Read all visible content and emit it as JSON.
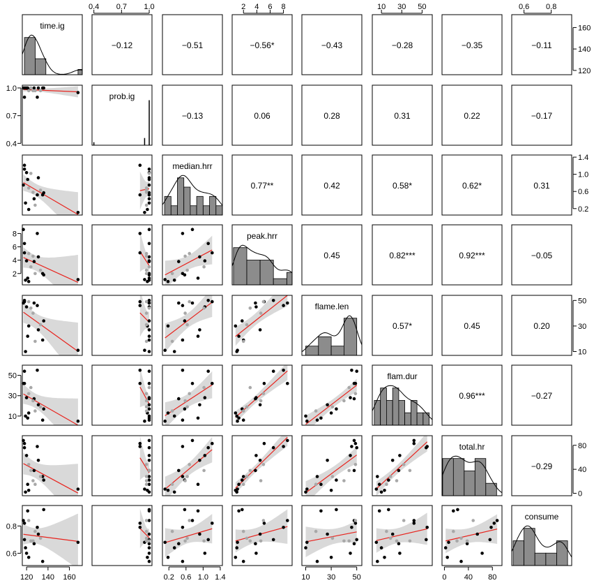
{
  "chart_data": {
    "type": "scatter",
    "variables": [
      "time.ig",
      "prob.ig",
      "median.hrr",
      "peak.hrr",
      "flame.len",
      "flam.dur",
      "total.hr",
      "consume"
    ],
    "diagonal_labels": [
      "time.ig",
      "prob.ig",
      "median.hrr",
      "peak.hrr",
      "flame.len",
      "flam.dur",
      "total.hr",
      "consume"
    ],
    "ranges": {
      "time.ig": [
        116,
        172
      ],
      "prob.ig": [
        0.38,
        1.03
      ],
      "median.hrr": [
        0.05,
        1.45
      ],
      "peak.hrr": [
        0.3,
        9.3
      ],
      "flame.len": [
        7,
        54
      ],
      "flam.dur": [
        1,
        60
      ],
      "total.hr": [
        -4,
        96
      ],
      "consume": [
        0.51,
        0.95
      ]
    },
    "top_axes": {
      "prob.ig": [
        "0.4",
        "0.7",
        "1.0"
      ],
      "peak.hrr": [
        "2",
        "4",
        "6",
        "8"
      ],
      "flam.dur": [
        "10",
        "30",
        "50"
      ],
      "consume": [
        "0.6",
        "0.8"
      ]
    },
    "bottom_axes": {
      "time.ig": [
        "120",
        "140",
        "160"
      ],
      "median.hrr": [
        "0.2",
        "0.6",
        "1.0",
        "1.4"
      ],
      "flame.len": [
        "10",
        "30",
        "50"
      ],
      "total.hr": [
        "0",
        "40",
        "80"
      ]
    },
    "left_axes": {
      "prob.ig": [
        "0.4",
        "0.7",
        "1.0"
      ],
      "peak.hrr": [
        "2",
        "4",
        "6",
        "8"
      ],
      "flam.dur": [
        "10",
        "30",
        "50"
      ],
      "consume": [
        "0.6",
        "0.8"
      ]
    },
    "right_axes": {
      "time.ig": [
        "120",
        "140",
        "160"
      ],
      "median.hrr": [
        "0.2",
        "0.6",
        "1.0",
        "1.4"
      ],
      "flame.len": [
        "10",
        "30",
        "50"
      ],
      "total.hr": [
        "0",
        "40",
        "80"
      ]
    },
    "correlations": [
      {
        "row": 0,
        "col": 1,
        "text": "−0.12"
      },
      {
        "row": 0,
        "col": 2,
        "text": "−0.51"
      },
      {
        "row": 0,
        "col": 3,
        "text": "−0.56*"
      },
      {
        "row": 0,
        "col": 4,
        "text": "−0.43"
      },
      {
        "row": 0,
        "col": 5,
        "text": "−0.28"
      },
      {
        "row": 0,
        "col": 6,
        "text": "−0.35"
      },
      {
        "row": 0,
        "col": 7,
        "text": "−0.11"
      },
      {
        "row": 1,
        "col": 2,
        "text": "−0.13"
      },
      {
        "row": 1,
        "col": 3,
        "text": "0.06"
      },
      {
        "row": 1,
        "col": 4,
        "text": "0.28"
      },
      {
        "row": 1,
        "col": 5,
        "text": "0.31"
      },
      {
        "row": 1,
        "col": 6,
        "text": "0.22"
      },
      {
        "row": 1,
        "col": 7,
        "text": "−0.17"
      },
      {
        "row": 2,
        "col": 3,
        "text": "0.77**"
      },
      {
        "row": 2,
        "col": 4,
        "text": "0.42"
      },
      {
        "row": 2,
        "col": 5,
        "text": "0.58*"
      },
      {
        "row": 2,
        "col": 6,
        "text": "0.62*"
      },
      {
        "row": 2,
        "col": 7,
        "text": "0.31"
      },
      {
        "row": 3,
        "col": 4,
        "text": "0.45"
      },
      {
        "row": 3,
        "col": 5,
        "text": "0.82***"
      },
      {
        "row": 3,
        "col": 6,
        "text": "0.92***"
      },
      {
        "row": 3,
        "col": 7,
        "text": "−0.05"
      },
      {
        "row": 4,
        "col": 5,
        "text": "0.57*"
      },
      {
        "row": 4,
        "col": 6,
        "text": "0.45"
      },
      {
        "row": 4,
        "col": 7,
        "text": "0.20"
      },
      {
        "row": 5,
        "col": 6,
        "text": "0.96***"
      },
      {
        "row": 5,
        "col": 7,
        "text": "−0.27"
      },
      {
        "row": 6,
        "col": 7,
        "text": "−0.29"
      }
    ],
    "histograms": {
      "time.ig": {
        "breaks": [
          118,
          128,
          138,
          148,
          158,
          168,
          172
        ],
        "counts": [
          7,
          3,
          0,
          0,
          0,
          1
        ]
      },
      "prob.ig": {
        "spikes": [
          {
            "x": 0.4,
            "h": 0.05
          },
          {
            "x": 0.95,
            "h": 0.12
          },
          {
            "x": 1.0,
            "h": 0.75
          }
        ]
      },
      "median.hrr": {
        "breaks": [
          0.1,
          0.25,
          0.4,
          0.55,
          0.7,
          0.85,
          1.0,
          1.15,
          1.3,
          1.45
        ],
        "counts": [
          2,
          1,
          4,
          3,
          1,
          2,
          1,
          2,
          1
        ]
      },
      "peak.hrr": {
        "breaks": [
          0.5,
          2.5,
          4.5,
          6.5,
          8.5,
          9.3
        ],
        "counts": [
          6,
          4,
          4,
          1,
          2
        ]
      },
      "flame.len": {
        "breaks": [
          10,
          20,
          30,
          40,
          50,
          54
        ],
        "counts": [
          1,
          2,
          1,
          4,
          0
        ]
      },
      "flam.dur": {
        "breaks": [
          3,
          9,
          15,
          21,
          27,
          33,
          39,
          45,
          51,
          57
        ],
        "counts": [
          2,
          3,
          2,
          3,
          2,
          1,
          2,
          1,
          1
        ]
      },
      "total.hr": {
        "breaks": [
          -3,
          15,
          33,
          51,
          69,
          87,
          96
        ],
        "counts": [
          3,
          3,
          2,
          3,
          1,
          0
        ]
      },
      "consume": {
        "breaks": [
          0.52,
          0.6,
          0.68,
          0.76,
          0.84,
          0.92,
          0.95
        ],
        "counts": [
          2,
          3,
          1,
          1,
          2,
          0
        ]
      }
    },
    "observations": [
      {
        "time.ig": 117,
        "prob.ig": 1.0,
        "median.hrr": 0.75,
        "peak.hrr": 8.6,
        "flame.len": 48,
        "flam.dur": 42,
        "total.hr": 88,
        "consume": 0.84,
        "hi": false
      },
      {
        "time.ig": 118,
        "prob.ig": 0.9,
        "median.hrr": 1.21,
        "peak.hrr": 5.1,
        "flame.len": 49,
        "flam.dur": 42,
        "total.hr": 83,
        "consume": 0.82,
        "hi": false
      },
      {
        "time.ig": 118,
        "prob.ig": 1.0,
        "median.hrr": 1.12,
        "peak.hrr": 6.5,
        "flame.len": 50,
        "flam.dur": 54,
        "total.hr": 76,
        "consume": 0.7,
        "hi": false
      },
      {
        "time.ig": 120,
        "prob.ig": 1.0,
        "median.hrr": 1.04,
        "peak.hrr": 3.9,
        "flame.len": 45,
        "flam.dur": 28,
        "total.hr": 63,
        "consume": 0.6,
        "hi": false
      },
      {
        "time.ig": 122,
        "prob.ig": 0.98,
        "median.hrr": 0.18,
        "peak.hrr": 0.8,
        "flame.len": 30,
        "flam.dur": 13,
        "total.hr": 5,
        "consume": 0.57,
        "hi": false
      },
      {
        "time.ig": 119,
        "prob.ig": 1.0,
        "median.hrr": 0.33,
        "peak.hrr": 1.0,
        "flame.len": 10,
        "flam.dur": 10,
        "total.hr": 2,
        "consume": 0.64,
        "hi": false
      },
      {
        "time.ig": 121,
        "prob.ig": 1.0,
        "median.hrr": 0.88,
        "peak.hrr": 1.3,
        "flame.len": 22,
        "flam.dur": 8,
        "total.hr": 15,
        "consume": 0.91,
        "hi": false
      },
      {
        "time.ig": 127,
        "prob.ig": 1.0,
        "median.hrr": 0.43,
        "peak.hrr": 3.8,
        "flame.len": 48,
        "flam.dur": 27,
        "total.hr": 38,
        "consume": 0.67,
        "hi": false
      },
      {
        "time.ig": 130,
        "prob.ig": 0.9,
        "median.hrr": 0.52,
        "peak.hrr": 8.0,
        "flame.len": 46,
        "flam.dur": 55,
        "total.hr": 78,
        "consume": 0.79,
        "hi": false
      },
      {
        "time.ig": 131,
        "prob.ig": 1.0,
        "median.hrr": 0.92,
        "peak.hrr": 4.5,
        "flame.len": 27,
        "flam.dur": 21,
        "total.hr": 55,
        "consume": 0.74,
        "hi": false
      },
      {
        "time.ig": 135,
        "prob.ig": 1.0,
        "median.hrr": 0.52,
        "peak.hrr": 2.0,
        "flame.len": 19,
        "flam.dur": 6,
        "total.hr": 28,
        "consume": 0.54,
        "hi": false
      },
      {
        "time.ig": 136,
        "prob.ig": 1.0,
        "median.hrr": 0.57,
        "peak.hrr": 1.8,
        "flame.len": 34,
        "flam.dur": 17,
        "total.hr": 22,
        "consume": 0.92,
        "hi": false
      },
      {
        "time.ig": 168,
        "prob.ig": 0.95,
        "median.hrr": 0.11,
        "peak.hrr": 1.1,
        "flame.len": 11,
        "flam.dur": 5,
        "total.hr": 7,
        "consume": 0.68,
        "hi": false
      },
      {
        "time.ig": 122,
        "prob.ig": 0.97,
        "median.hrr": 0.68,
        "peak.hrr": 5.0,
        "flame.len": 49,
        "flam.dur": 32,
        "total.hr": 48,
        "consume": 0.84,
        "hi": true
      },
      {
        "time.ig": 124,
        "prob.ig": 1.0,
        "median.hrr": 1.02,
        "peak.hrr": 3.0,
        "flame.len": 44,
        "flam.dur": 38,
        "total.hr": 38,
        "consume": 0.69,
        "hi": true
      },
      {
        "time.ig": 126,
        "prob.ig": 0.97,
        "median.hrr": 0.58,
        "peak.hrr": 4.6,
        "flame.len": 40,
        "flam.dur": 25,
        "total.hr": 21,
        "consume": 0.69,
        "hi": true
      },
      {
        "time.ig": 128,
        "prob.ig": 0.97,
        "median.hrr": 0.28,
        "peak.hrr": 2.0,
        "flame.len": 18,
        "flam.dur": 15,
        "total.hr": 15,
        "consume": 0.76,
        "hi": true
      },
      {
        "time.ig": 133,
        "prob.ig": 0.97,
        "median.hrr": 0.63,
        "peak.hrr": 2.5,
        "flame.len": 31,
        "flam.dur": 19,
        "total.hr": 28,
        "consume": 0.71,
        "hi": true
      }
    ]
  }
}
